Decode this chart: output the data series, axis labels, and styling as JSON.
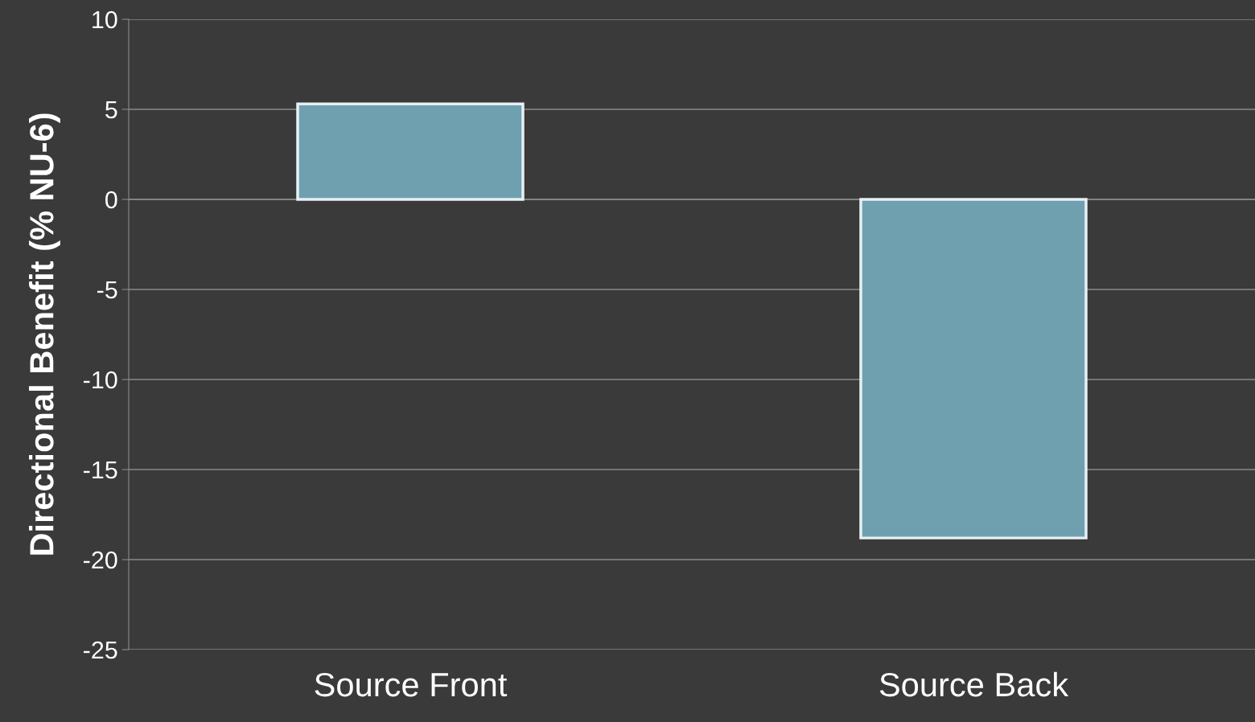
{
  "chart_data": {
    "type": "bar",
    "ylabel": "Directional Benefit (% NU-6)",
    "categories": [
      "Source Front",
      "Source Back"
    ],
    "values": [
      5.3,
      -18.8
    ],
    "color": "#6fa0b0",
    "ylim": [
      -25,
      10
    ],
    "yticks": [
      -25,
      -20,
      -15,
      -10,
      -5,
      0,
      5,
      10
    ],
    "grid": "y"
  }
}
